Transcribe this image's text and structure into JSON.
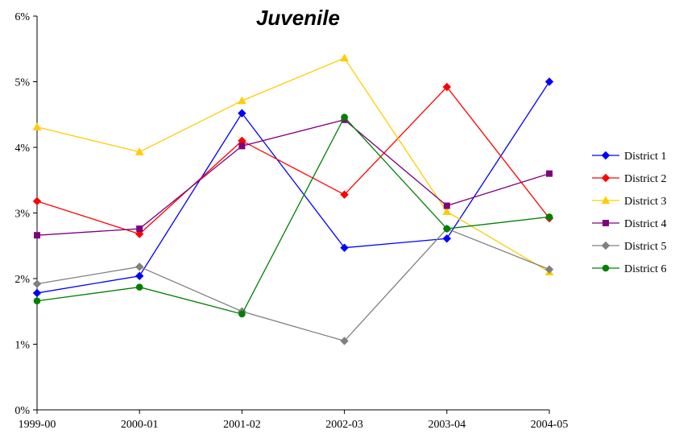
{
  "chart_data": {
    "type": "line",
    "title": "Juvenile",
    "xlabel": "",
    "ylabel": "",
    "categories": [
      "1999-00",
      "2000-01",
      "2001-02",
      "2002-03",
      "2003-04",
      "2004-05"
    ],
    "ylim": [
      0,
      6
    ],
    "yticks": [
      "0%",
      "1%",
      "2%",
      "3%",
      "4%",
      "5%",
      "6%"
    ],
    "grid": false,
    "legend_position": "right",
    "series": [
      {
        "name": "District 1",
        "color": "#0000ff",
        "marker": "diamond",
        "values": [
          1.78,
          2.04,
          4.52,
          2.47,
          2.61,
          5.0
        ]
      },
      {
        "name": "District 2",
        "color": "#ff0000",
        "marker": "diamond",
        "values": [
          3.18,
          2.68,
          4.1,
          3.28,
          4.92,
          2.92
        ]
      },
      {
        "name": "District 3",
        "color": "#ffcc00",
        "marker": "triangle",
        "values": [
          4.31,
          3.93,
          4.71,
          5.36,
          3.02,
          2.1
        ]
      },
      {
        "name": "District 4",
        "color": "#800080",
        "marker": "square",
        "values": [
          2.66,
          2.76,
          4.02,
          4.42,
          3.11,
          3.6
        ]
      },
      {
        "name": "District 5",
        "color": "#808080",
        "marker": "diamond",
        "values": [
          1.92,
          2.18,
          1.5,
          1.05,
          2.76,
          2.14
        ]
      },
      {
        "name": "District 6",
        "color": "#008000",
        "marker": "circle",
        "values": [
          1.66,
          1.87,
          1.46,
          4.46,
          2.76,
          2.94
        ]
      }
    ]
  }
}
